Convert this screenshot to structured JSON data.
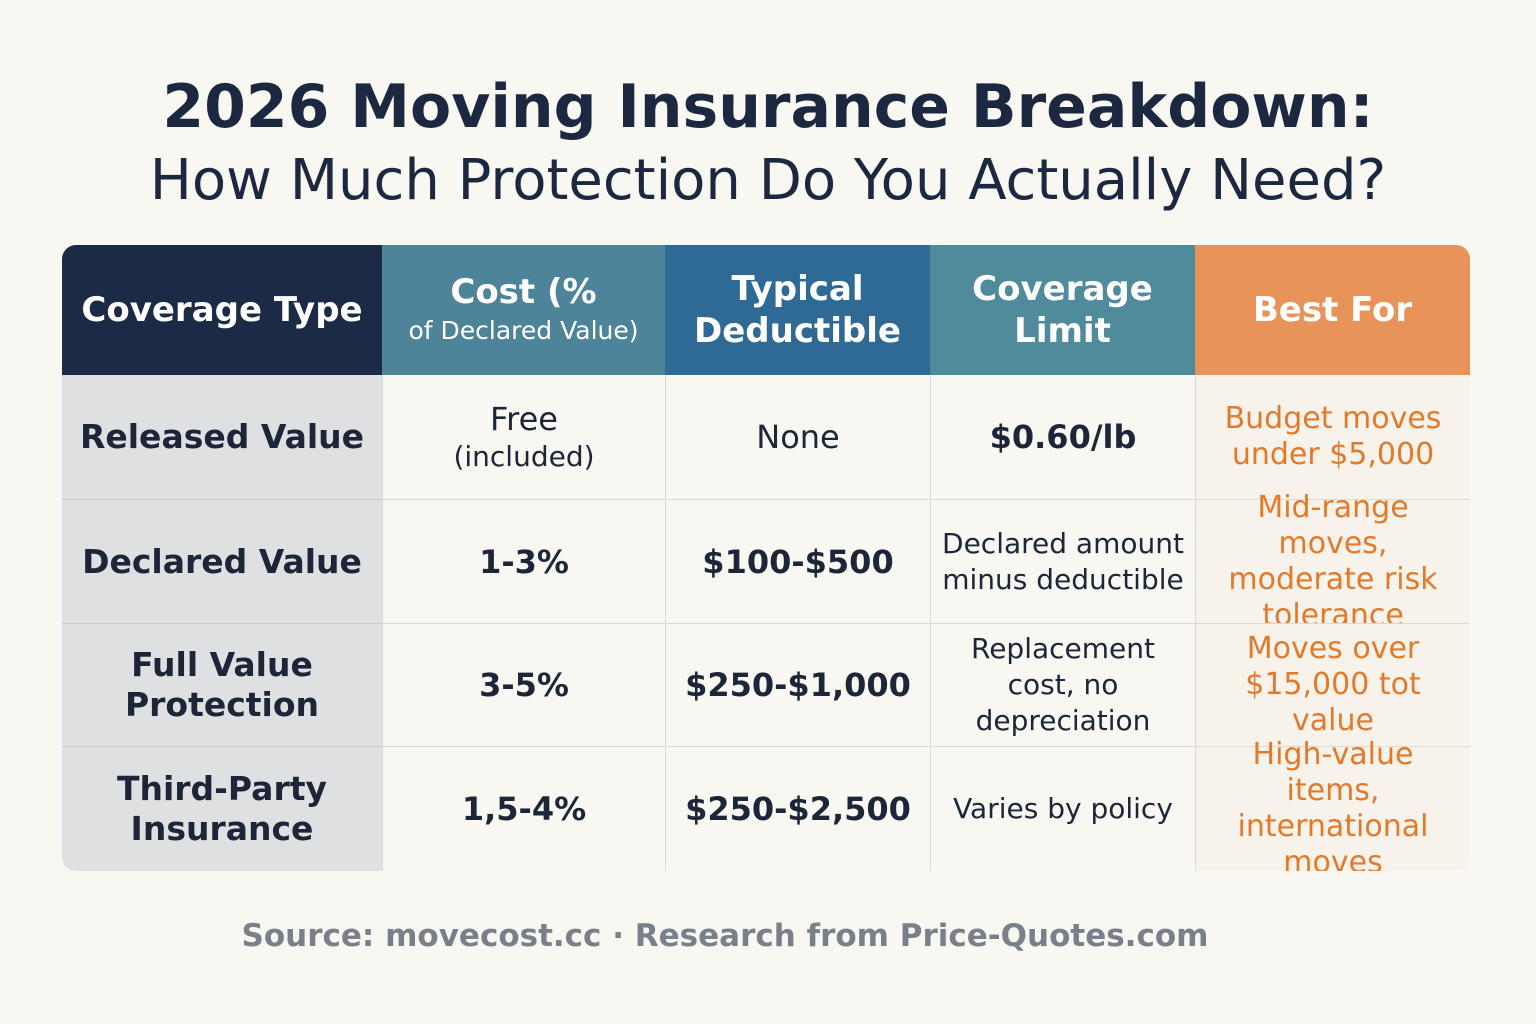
{
  "title": "2026 Moving Insurance Breakdown:",
  "subtitle": "How Much Protection Do You Actually Need?",
  "table": {
    "headers": [
      {
        "line1": "Coverage Type",
        "line2": ""
      },
      {
        "line1": "Cost (%",
        "line2": "of Declared Value)"
      },
      {
        "line1": "Typical",
        "line2": "Deductible"
      },
      {
        "line1": "Coverage",
        "line2": "Limit"
      },
      {
        "line1": "Best For",
        "line2": ""
      }
    ],
    "rows": [
      {
        "coverage_type": "Released Value",
        "cost": "Free",
        "cost_note": "(included)",
        "deductible": "None",
        "limit": "$0.60/lb",
        "best_for": "Budget moves under $5,000"
      },
      {
        "coverage_type": "Declared Value",
        "cost": "1-3%",
        "cost_note": "",
        "deductible": "$100-$500",
        "limit": "Declared amount minus deductible",
        "best_for": "Mid-range moves, moderate risk tolerance"
      },
      {
        "coverage_type": "Full Value Protection",
        "cost": "3-5%",
        "cost_note": "",
        "deductible": "$250-$1,000",
        "limit": "Replacement cost, no depreciation",
        "best_for": "Moves over $15,000 tot value"
      },
      {
        "coverage_type": "Third-Party Insurance",
        "cost": "1,5-4%",
        "cost_note": "",
        "deductible": "$250-$2,500",
        "limit": "Varies by policy",
        "best_for": "High-value items, international moves"
      }
    ]
  },
  "source": "Source: movecost.cc · Research from Price-Quotes.com",
  "colors": {
    "header_navy": "#1b2a45",
    "header_teal": "#4e8499",
    "header_blue": "#2f6a95",
    "header_teal2": "#4f8b9b",
    "header_orange": "#e8935a",
    "best_for_text": "#e27a2c"
  }
}
